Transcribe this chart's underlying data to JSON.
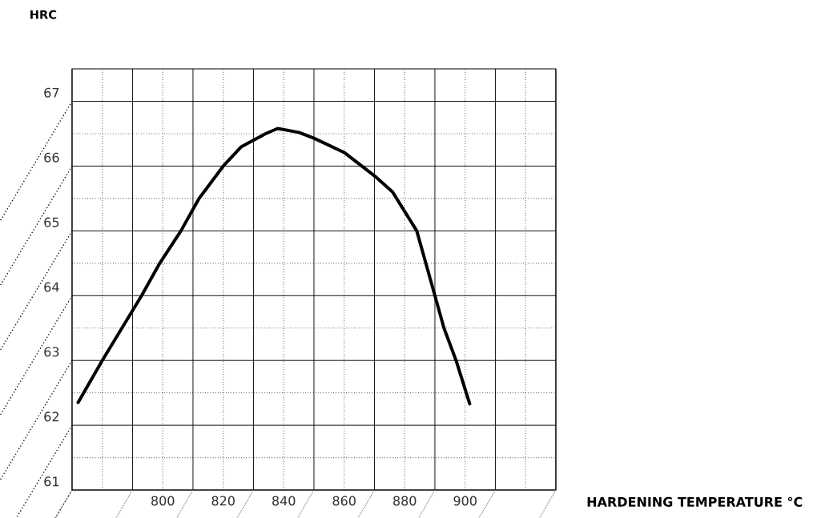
{
  "chart_data": {
    "type": "line",
    "xlabel": "HARDENING TEMPERATURE °C",
    "ylabel": "HRC",
    "x": [
      772,
      780,
      793,
      799,
      806,
      812,
      820,
      826,
      834,
      838,
      845,
      850,
      860,
      870,
      876,
      880,
      884,
      887,
      890,
      893,
      897,
      901.5
    ],
    "values": [
      62.35,
      63.0,
      64.0,
      64.5,
      65.0,
      65.5,
      66.0,
      66.3,
      66.5,
      66.58,
      66.52,
      66.43,
      66.21,
      65.85,
      65.6,
      65.3,
      65.0,
      64.5,
      64.0,
      63.5,
      63.0,
      62.33
    ],
    "color": "#000000",
    "xlim": [
      770,
      930
    ],
    "ylim": [
      61,
      67.5
    ],
    "xticks": [
      {
        "value": 770,
        "label": null
      },
      {
        "value": 790,
        "label": null
      },
      800,
      {
        "value": 810,
        "label": null
      },
      820,
      {
        "value": 830,
        "label": null
      },
      840,
      {
        "value": 850,
        "label": null
      },
      860,
      {
        "value": 870,
        "label": null
      },
      880,
      {
        "value": 890,
        "label": null
      },
      900,
      {
        "value": 910,
        "label": null
      },
      {
        "value": 930,
        "label": null
      }
    ],
    "yticks": [
      61,
      62,
      63,
      64,
      65,
      66,
      67
    ],
    "grid": true,
    "marker": "none",
    "line_style": "solid"
  }
}
